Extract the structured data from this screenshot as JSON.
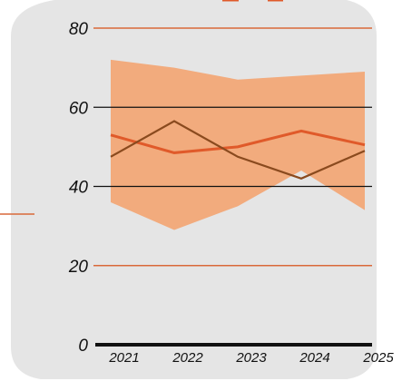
{
  "chart_data": {
    "type": "line",
    "title": "",
    "xlabel": "",
    "ylabel": "",
    "categories": [
      "2021",
      "2022",
      "2023",
      "2024",
      "2025"
    ],
    "ylim": [
      0,
      80
    ],
    "yticks": [
      "0",
      "20",
      "40",
      "60",
      "80"
    ],
    "grid": true,
    "legend": "none",
    "band": {
      "upper": [
        72,
        70,
        67,
        68,
        69
      ],
      "lower": [
        36,
        29,
        35,
        44,
        34
      ],
      "color": "#f2ab7d"
    },
    "series": [
      {
        "color": "#e05a2a",
        "values": [
          53,
          48.5,
          50,
          54,
          50.5
        ]
      },
      {
        "color": "#8a4a1e",
        "values": [
          47.5,
          56.5,
          47.5,
          42,
          49
        ]
      }
    ],
    "colors": {
      "panel": "#e5e5e5",
      "gridline_outside": "#d9693a",
      "gridline_inside": "#111111",
      "axis": "#111111"
    }
  }
}
